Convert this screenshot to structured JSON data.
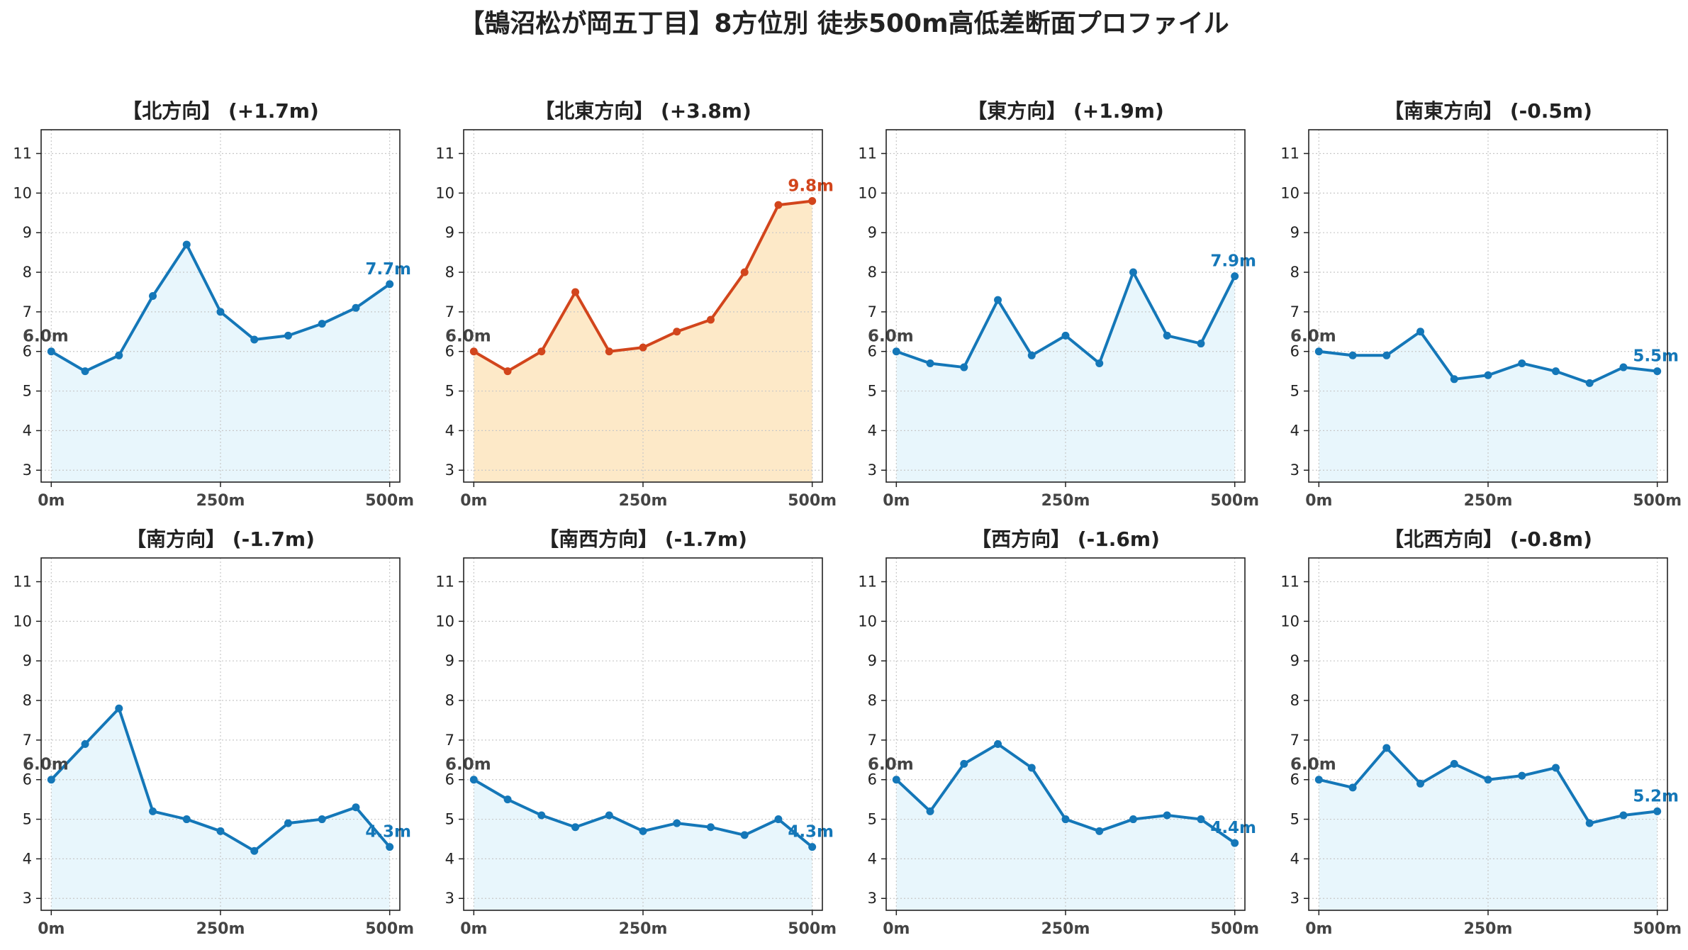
{
  "title": "【鵠沼松が岡五丁目】8方位別 徒歩500m高低差断面プロファイル",
  "colors": {
    "normal_line": "#1477b8",
    "normal_fill": "#e8f6fc",
    "highlight_line": "#d2451c",
    "highlight_fill": "#fde9c8",
    "start_label": "#444444",
    "grid": "#c8c8c8"
  },
  "chart_data": [
    {
      "type": "area",
      "title": "【北方向】 (+1.7m)",
      "highlight": false,
      "x": [
        0,
        50,
        100,
        150,
        200,
        250,
        300,
        350,
        400,
        450,
        500
      ],
      "y": [
        6.0,
        5.5,
        5.9,
        7.4,
        8.7,
        7.0,
        6.3,
        6.4,
        6.7,
        7.1,
        7.7
      ],
      "start_label": "6.0m",
      "end_label": "7.7m",
      "ylim": [
        2.7,
        11.6
      ],
      "yticks": [
        3,
        4,
        5,
        6,
        7,
        8,
        9,
        10,
        11
      ],
      "xlim": [
        -15,
        515
      ],
      "xticks": [
        0,
        250,
        500
      ],
      "xtick_labels": [
        "0m",
        "250m",
        "500m"
      ],
      "grid": true
    },
    {
      "type": "area",
      "title": "【北東方向】 (+3.8m)",
      "highlight": true,
      "x": [
        0,
        50,
        100,
        150,
        200,
        250,
        300,
        350,
        400,
        450,
        500
      ],
      "y": [
        6.0,
        5.5,
        6.0,
        7.5,
        6.0,
        6.1,
        6.5,
        6.8,
        8.0,
        9.7,
        9.8
      ],
      "start_label": "6.0m",
      "end_label": "9.8m",
      "ylim": [
        2.7,
        11.6
      ],
      "yticks": [
        3,
        4,
        5,
        6,
        7,
        8,
        9,
        10,
        11
      ],
      "xlim": [
        -15,
        515
      ],
      "xticks": [
        0,
        250,
        500
      ],
      "xtick_labels": [
        "0m",
        "250m",
        "500m"
      ],
      "grid": true
    },
    {
      "type": "area",
      "title": "【東方向】 (+1.9m)",
      "highlight": false,
      "x": [
        0,
        50,
        100,
        150,
        200,
        250,
        300,
        350,
        400,
        450,
        500
      ],
      "y": [
        6.0,
        5.7,
        5.6,
        7.3,
        5.9,
        6.4,
        5.7,
        8.0,
        6.4,
        6.2,
        7.9
      ],
      "start_label": "6.0m",
      "end_label": "7.9m",
      "ylim": [
        2.7,
        11.6
      ],
      "yticks": [
        3,
        4,
        5,
        6,
        7,
        8,
        9,
        10,
        11
      ],
      "xlim": [
        -15,
        515
      ],
      "xticks": [
        0,
        250,
        500
      ],
      "xtick_labels": [
        "0m",
        "250m",
        "500m"
      ],
      "grid": true
    },
    {
      "type": "area",
      "title": "【南東方向】 (-0.5m)",
      "highlight": false,
      "x": [
        0,
        50,
        100,
        150,
        200,
        250,
        300,
        350,
        400,
        450,
        500
      ],
      "y": [
        6.0,
        5.9,
        5.9,
        6.5,
        5.3,
        5.4,
        5.7,
        5.5,
        5.2,
        5.6,
        5.5
      ],
      "start_label": "6.0m",
      "end_label": "5.5m",
      "ylim": [
        2.7,
        11.6
      ],
      "yticks": [
        3,
        4,
        5,
        6,
        7,
        8,
        9,
        10,
        11
      ],
      "xlim": [
        -15,
        515
      ],
      "xticks": [
        0,
        250,
        500
      ],
      "xtick_labels": [
        "0m",
        "250m",
        "500m"
      ],
      "grid": true
    },
    {
      "type": "area",
      "title": "【南方向】 (-1.7m)",
      "highlight": false,
      "x": [
        0,
        50,
        100,
        150,
        200,
        250,
        300,
        350,
        400,
        450,
        500
      ],
      "y": [
        6.0,
        6.9,
        7.8,
        5.2,
        5.0,
        4.7,
        4.2,
        4.9,
        5.0,
        5.3,
        4.3
      ],
      "start_label": "6.0m",
      "end_label": "4.3m",
      "ylim": [
        2.7,
        11.6
      ],
      "yticks": [
        3,
        4,
        5,
        6,
        7,
        8,
        9,
        10,
        11
      ],
      "xlim": [
        -15,
        515
      ],
      "xticks": [
        0,
        250,
        500
      ],
      "xtick_labels": [
        "0m",
        "250m",
        "500m"
      ],
      "grid": true
    },
    {
      "type": "area",
      "title": "【南西方向】 (-1.7m)",
      "highlight": false,
      "x": [
        0,
        50,
        100,
        150,
        200,
        250,
        300,
        350,
        400,
        450,
        500
      ],
      "y": [
        6.0,
        5.5,
        5.1,
        4.8,
        5.1,
        4.7,
        4.9,
        4.8,
        4.6,
        5.0,
        4.3
      ],
      "start_label": "6.0m",
      "end_label": "4.3m",
      "ylim": [
        2.7,
        11.6
      ],
      "yticks": [
        3,
        4,
        5,
        6,
        7,
        8,
        9,
        10,
        11
      ],
      "xlim": [
        -15,
        515
      ],
      "xticks": [
        0,
        250,
        500
      ],
      "xtick_labels": [
        "0m",
        "250m",
        "500m"
      ],
      "grid": true
    },
    {
      "type": "area",
      "title": "【西方向】 (-1.6m)",
      "highlight": false,
      "x": [
        0,
        50,
        100,
        150,
        200,
        250,
        300,
        350,
        400,
        450,
        500
      ],
      "y": [
        6.0,
        5.2,
        6.4,
        6.9,
        6.3,
        5.0,
        4.7,
        5.0,
        5.1,
        5.0,
        4.4
      ],
      "start_label": "6.0m",
      "end_label": "4.4m",
      "ylim": [
        2.7,
        11.6
      ],
      "yticks": [
        3,
        4,
        5,
        6,
        7,
        8,
        9,
        10,
        11
      ],
      "xlim": [
        -15,
        515
      ],
      "xticks": [
        0,
        250,
        500
      ],
      "xtick_labels": [
        "0m",
        "250m",
        "500m"
      ],
      "grid": true
    },
    {
      "type": "area",
      "title": "【北西方向】 (-0.8m)",
      "highlight": false,
      "x": [
        0,
        50,
        100,
        150,
        200,
        250,
        300,
        350,
        400,
        450,
        500
      ],
      "y": [
        6.0,
        5.8,
        6.8,
        5.9,
        6.4,
        6.0,
        6.1,
        6.3,
        4.9,
        5.1,
        5.2
      ],
      "start_label": "6.0m",
      "end_label": "5.2m",
      "ylim": [
        2.7,
        11.6
      ],
      "yticks": [
        3,
        4,
        5,
        6,
        7,
        8,
        9,
        10,
        11
      ],
      "xlim": [
        -15,
        515
      ],
      "xticks": [
        0,
        250,
        500
      ],
      "xtick_labels": [
        "0m",
        "250m",
        "500m"
      ],
      "grid": true
    }
  ]
}
